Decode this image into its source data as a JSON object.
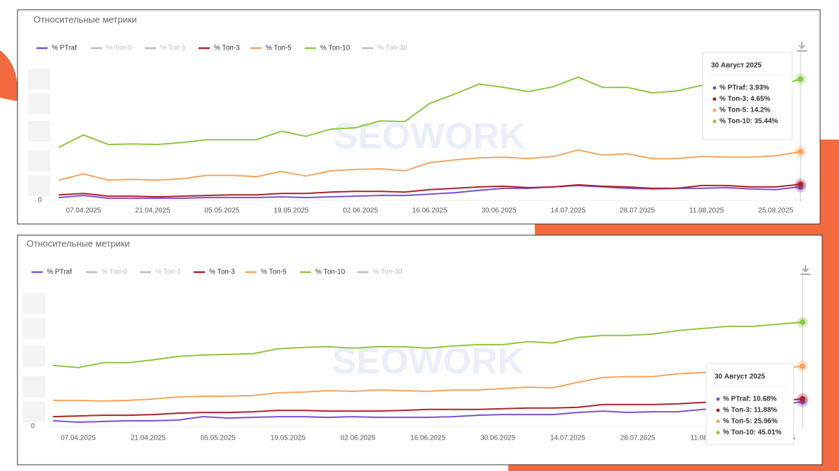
{
  "chart_data": [
    {
      "type": "line",
      "title": "Относительные метрики",
      "watermark": "SEOWORK",
      "x": [
        "02.04.2025",
        "07.04.2025",
        "12.04.2025",
        "17.04.2025",
        "22.04.2025",
        "27.04.2025",
        "02.05.2025",
        "07.05.2025",
        "12.05.2025",
        "17.05.2025",
        "22.05.2025",
        "27.05.2025",
        "01.06.2025",
        "06.06.2025",
        "11.06.2025",
        "16.06.2025",
        "21.06.2025",
        "26.06.2025",
        "01.07.2025",
        "06.07.2025",
        "11.07.2025",
        "16.07.2025",
        "21.07.2025",
        "26.07.2025",
        "31.07.2025",
        "05.08.2025",
        "10.08.2025",
        "15.08.2025",
        "20.08.2025",
        "25.08.2025",
        "30.08.2025"
      ],
      "series": [
        {
          "name": "% PTraf",
          "color": "#7b4fd1",
          "values": [
            0.8,
            1.4,
            0.6,
            0.6,
            0.6,
            0.6,
            0.8,
            0.8,
            0.8,
            1.0,
            0.8,
            1.0,
            1.2,
            1.4,
            1.4,
            1.8,
            2.2,
            2.9,
            3.5,
            3.5,
            3.9,
            4.3,
            3.9,
            3.5,
            3.3,
            3.5,
            3.5,
            3.7,
            3.3,
            3.1,
            3.93
          ]
        },
        {
          "name": "% Топ-0",
          "color": "#bbbbbb",
          "hidden": true
        },
        {
          "name": "% Топ-1",
          "color": "#bbbbbb",
          "hidden": true
        },
        {
          "name": "% Топ-3",
          "color": "#b0202a",
          "values": [
            1.6,
            2.0,
            1.2,
            1.2,
            1.0,
            1.2,
            1.4,
            1.6,
            1.6,
            2.0,
            2.0,
            2.4,
            2.6,
            2.6,
            2.4,
            3.1,
            3.5,
            3.9,
            4.1,
            3.7,
            3.9,
            4.5,
            4.1,
            3.9,
            3.5,
            3.5,
            4.3,
            4.3,
            3.9,
            3.9,
            4.65
          ]
        },
        {
          "name": "% Топ-5",
          "color": "#f4a460",
          "values": [
            5.9,
            7.7,
            5.9,
            6.1,
            5.9,
            6.3,
            7.3,
            7.3,
            6.9,
            8.4,
            7.1,
            8.6,
            9.0,
            9.2,
            8.6,
            11.0,
            11.8,
            12.4,
            12.6,
            12.2,
            12.8,
            14.7,
            13.2,
            13.6,
            12.2,
            12.2,
            12.8,
            12.6,
            12.6,
            13.0,
            14.2
          ]
        },
        {
          "name": "% Топ-10",
          "color": "#8cc63f",
          "values": [
            15.5,
            19.1,
            16.3,
            16.5,
            16.3,
            16.9,
            17.7,
            17.7,
            17.7,
            20.2,
            18.7,
            20.8,
            21.2,
            23.2,
            23.0,
            28.3,
            31.0,
            34.0,
            33.0,
            31.8,
            33.2,
            36.0,
            33.0,
            33.0,
            31.4,
            32.0,
            33.6,
            34.4,
            34.0,
            33.2,
            35.44
          ]
        },
        {
          "name": "% Топ-30",
          "color": "#bbbbbb",
          "hidden": true
        }
      ],
      "xlim": [
        "01.04.2025",
        "31.08.2025"
      ],
      "xticks": [
        "07.04.2025",
        "21.04.2025",
        "05.05.2025",
        "19.05.2025",
        "02.06.2025",
        "16.06.2025",
        "30.06.2025",
        "14.07.2025",
        "28.07.2025",
        "11.08.2025",
        "25.08.2025"
      ],
      "ylim": [
        0,
        40
      ],
      "yticks": [
        0
      ],
      "tooltip": {
        "title": "30 Август 2025",
        "items": [
          {
            "text": "% PTraf: 3.93%",
            "color": "#7b4fd1"
          },
          {
            "text": "% Топ-3: 4.65%",
            "color": "#b0202a"
          },
          {
            "text": "% Топ-5: 14.2%",
            "color": "#f4a460"
          },
          {
            "text": "% Топ-10: 35.44%",
            "color": "#8cc63f"
          }
        ]
      }
    },
    {
      "type": "line",
      "title": "Относительные метрики",
      "watermark": "SEOWORK",
      "x": [
        "02.04.2025",
        "07.04.2025",
        "12.04.2025",
        "17.04.2025",
        "22.04.2025",
        "27.04.2025",
        "02.05.2025",
        "07.05.2025",
        "12.05.2025",
        "17.05.2025",
        "22.05.2025",
        "27.05.2025",
        "01.06.2025",
        "06.06.2025",
        "11.06.2025",
        "16.06.2025",
        "21.06.2025",
        "26.06.2025",
        "01.07.2025",
        "06.07.2025",
        "11.07.2025",
        "16.07.2025",
        "21.07.2025",
        "26.07.2025",
        "31.07.2025",
        "05.08.2025",
        "10.08.2025",
        "15.08.2025",
        "20.08.2025",
        "25.08.2025",
        "30.08.2025"
      ],
      "series": [
        {
          "name": "% PTraf",
          "color": "#7b4fd1",
          "values": [
            2.4,
            1.8,
            2.1,
            2.4,
            2.4,
            2.7,
            4.2,
            3.6,
            3.9,
            4.2,
            4.2,
            3.9,
            4.2,
            3.9,
            3.9,
            3.9,
            4.2,
            4.8,
            5.1,
            5.1,
            5.1,
            6.0,
            6.6,
            6.0,
            6.3,
            6.3,
            7.3,
            7.9,
            8.5,
            9.1,
            10.68
          ]
        },
        {
          "name": "% Топ-0",
          "color": "#bbbbbb",
          "hidden": true
        },
        {
          "name": "% Топ-1",
          "color": "#bbbbbb",
          "hidden": true
        },
        {
          "name": "% Топ-3",
          "color": "#b0202a",
          "values": [
            4.2,
            4.5,
            4.8,
            4.8,
            5.1,
            5.7,
            6.0,
            6.0,
            6.3,
            6.9,
            6.9,
            6.6,
            6.6,
            6.6,
            6.9,
            7.3,
            7.3,
            7.3,
            7.6,
            7.9,
            7.9,
            8.2,
            9.4,
            9.4,
            9.4,
            9.7,
            10.3,
            10.3,
            10.6,
            10.9,
            11.88
          ]
        },
        {
          "name": "% Топ-5",
          "color": "#f4a460",
          "values": [
            11.2,
            11.2,
            10.9,
            11.2,
            11.8,
            12.7,
            13.0,
            13.0,
            13.3,
            14.5,
            14.8,
            15.4,
            15.1,
            15.7,
            15.4,
            15.1,
            15.7,
            15.7,
            16.3,
            16.9,
            16.6,
            19.0,
            21.1,
            21.5,
            21.5,
            22.7,
            23.3,
            23.9,
            24.2,
            25.1,
            25.96
          ]
        },
        {
          "name": "% Топ-10",
          "color": "#8cc63f",
          "values": [
            26.3,
            25.4,
            27.5,
            27.5,
            28.7,
            30.2,
            30.8,
            31.1,
            31.4,
            33.5,
            34.1,
            34.4,
            33.8,
            34.4,
            34.4,
            33.8,
            34.7,
            35.3,
            35.3,
            36.6,
            36.0,
            38.4,
            39.3,
            39.3,
            39.9,
            41.4,
            42.3,
            43.2,
            43.2,
            44.1,
            45.01
          ]
        },
        {
          "name": "% Топ-30",
          "color": "#bbbbbb",
          "hidden": true
        }
      ],
      "xlim": [
        "01.04.2025",
        "31.08.2025"
      ],
      "xticks": [
        "07.04.2025",
        "21.04.2025",
        "05.05.2025",
        "19.05.2025",
        "02.06.2025",
        "16.06.2025",
        "30.06.2025",
        "14.07.2025",
        "28.07.2025",
        "11.08.2025",
        "25.08.2025"
      ],
      "ylim": [
        0,
        60
      ],
      "yticks": [
        0
      ],
      "tooltip": {
        "title": "30 Август 2025",
        "items": [
          {
            "text": "% PTraf: 10.68%",
            "color": "#7b4fd1"
          },
          {
            "text": "% Топ-3: 11.88%",
            "color": "#b0202a"
          },
          {
            "text": "% Топ-5: 25.96%",
            "color": "#f4a460"
          },
          {
            "text": "% Топ-10: 45.01%",
            "color": "#8cc63f"
          }
        ]
      }
    }
  ]
}
